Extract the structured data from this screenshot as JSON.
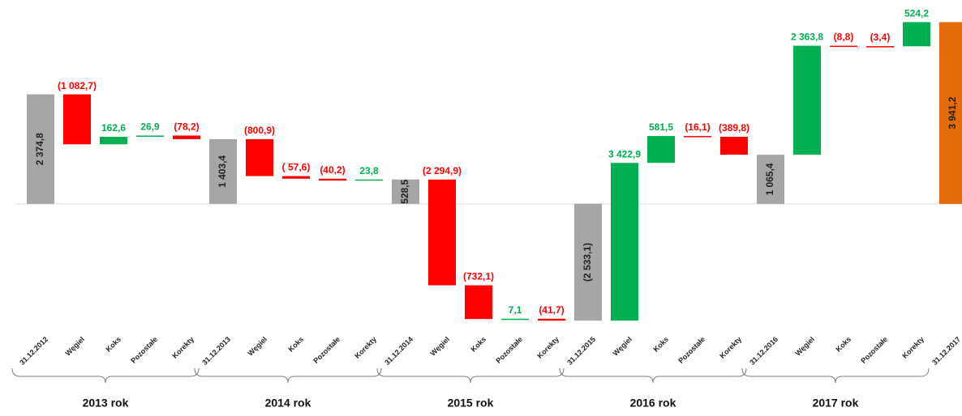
{
  "chart_data": {
    "type": "waterfall",
    "categories": [
      "31.12.2012",
      "Węgiel",
      "Koks",
      "Pozostałe",
      "Korekty",
      "31.12.2013",
      "Węgiel",
      "Koks",
      "Pozostałe",
      "Korekty",
      "31.12.2014",
      "Węgiel",
      "Koks",
      "Pozostałe",
      "Korekty",
      "31.12.2015",
      "Węgiel",
      "Koks",
      "Pozostałe",
      "Korekty",
      "31.12.2016",
      "Węgiel",
      "Koks",
      "Pozostałe",
      "Korekty",
      "31.12.2017"
    ],
    "values": [
      2374.8,
      -1082.7,
      162.6,
      26.9,
      -78.2,
      1403.4,
      -800.9,
      -57.6,
      -40.2,
      23.8,
      528.5,
      -2294.9,
      -732.1,
      7.1,
      -41.7,
      -2533.1,
      3422.9,
      581.5,
      -16.1,
      -389.8,
      1065.4,
      2363.8,
      -8.8,
      -3.4,
      524.2,
      3941.2
    ],
    "value_labels": [
      "2 374,8",
      "(1 082,7)",
      "162,6",
      "26,9",
      "(78,2)",
      "1 403,4",
      "(800,9)",
      "( 57,6)",
      "(40,2)",
      "23,8",
      "528,5",
      "(2 294,9)",
      "(732,1)",
      "7,1",
      "(41,7)",
      "(2 533,1)",
      "3 422,9",
      "581,5",
      "(16,1)",
      "(389,8)",
      "1 065,4",
      "2 363,8",
      "(8,8)",
      "(3,4)",
      "524,2",
      "3 941,2"
    ],
    "colors": [
      "#a6a6a6",
      "#ff0000",
      "#00b050",
      "#00b050",
      "#ff0000",
      "#a6a6a6",
      "#ff0000",
      "#ff0000",
      "#ff0000",
      "#00b050",
      "#a6a6a6",
      "#ff0000",
      "#ff0000",
      "#00b050",
      "#ff0000",
      "#a6a6a6",
      "#00b050",
      "#00b050",
      "#ff0000",
      "#ff0000",
      "#a6a6a6",
      "#00b050",
      "#ff0000",
      "#ff0000",
      "#00b050",
      "#e46c0a"
    ],
    "groups": [
      "2013 rok",
      "2014 rok",
      "2015 rok",
      "2016 rok",
      "2017 rok"
    ],
    "ylim": [
      -2600,
      4000
    ]
  }
}
